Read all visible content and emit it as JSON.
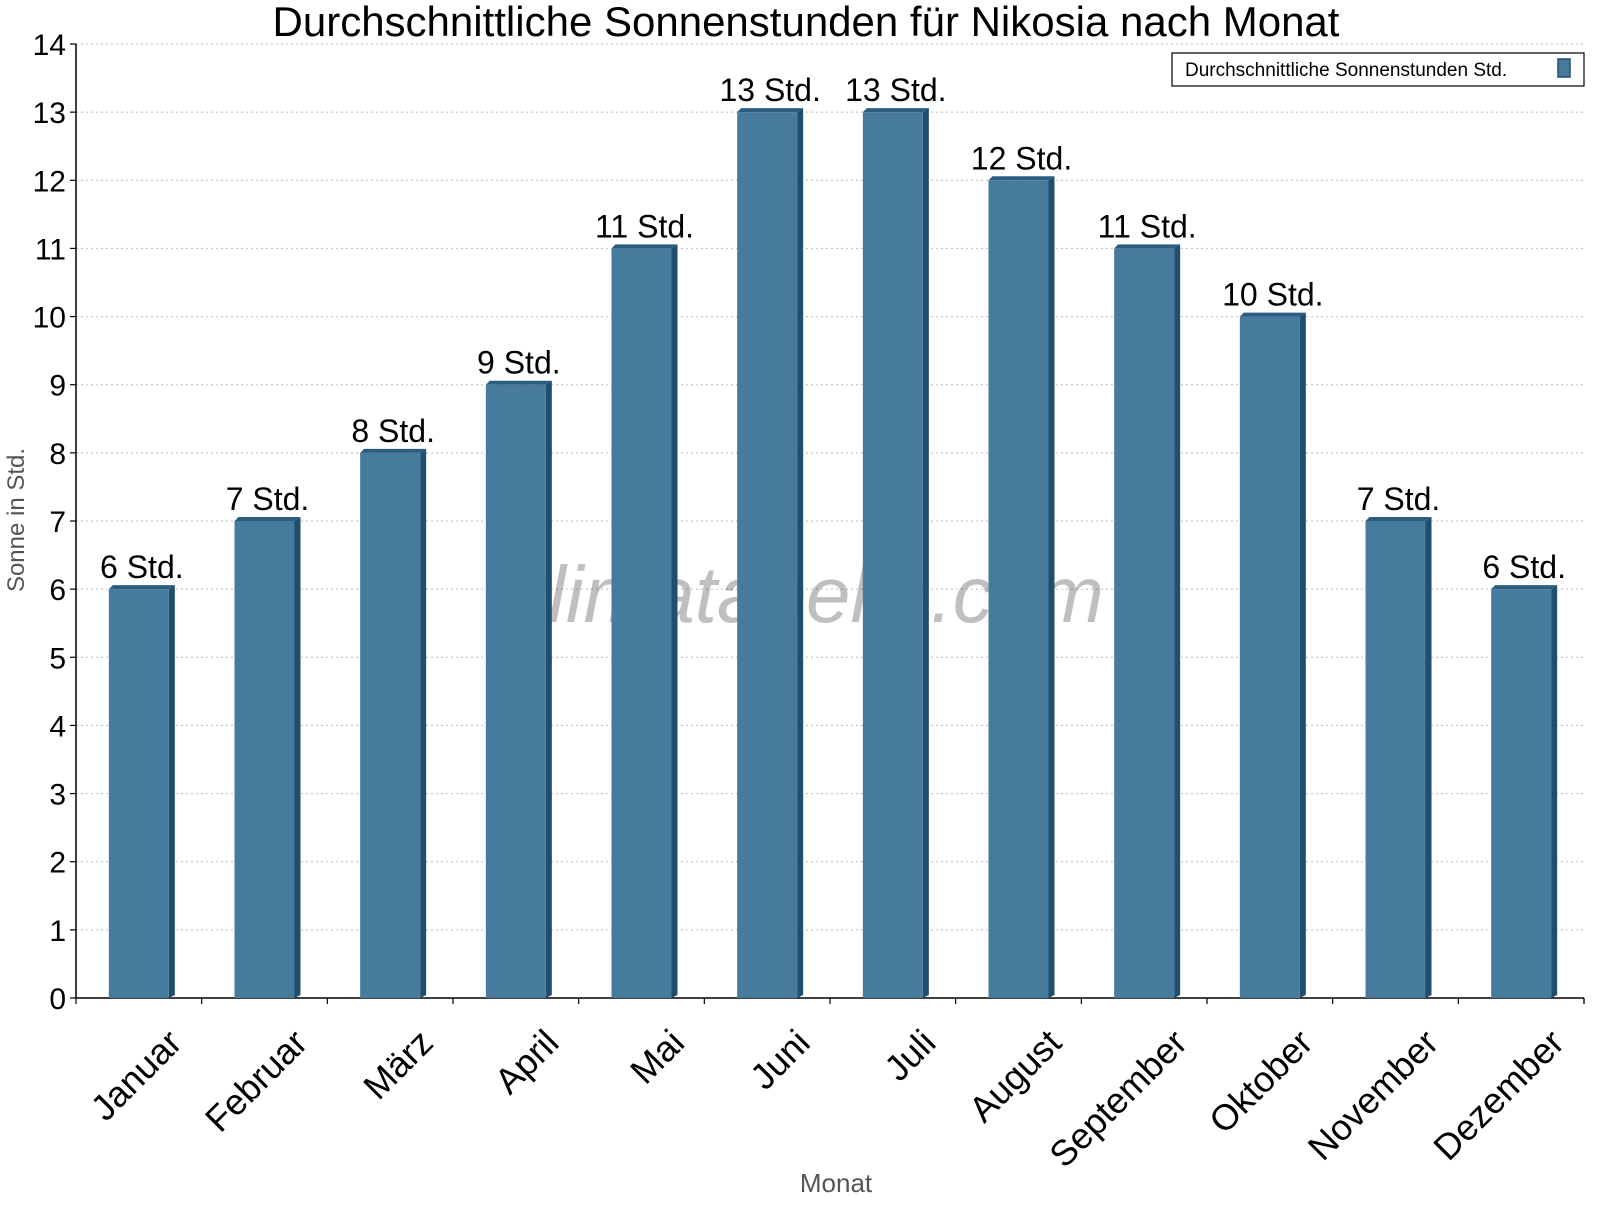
{
  "chart_data": {
    "type": "bar",
    "title": "Durchschnittliche Sonnenstunden für Nikosia nach Monat",
    "xlabel": "Monat",
    "ylabel": "Sonne in Std.",
    "ylim": [
      0,
      14
    ],
    "yticks": [
      "0",
      "1",
      "2",
      "3",
      "4",
      "5",
      "6",
      "7",
      "8",
      "9",
      "10",
      "11",
      "12",
      "13",
      "14"
    ],
    "grid": true,
    "legend_position": "top-right",
    "watermark": "klimatabelle.com",
    "categories": [
      "Januar",
      "Februar",
      "März",
      "April",
      "Mai",
      "Juni",
      "Juli",
      "August",
      "September",
      "Oktober",
      "November",
      "Dezember"
    ],
    "series": [
      {
        "name": "Durchschnittliche Sonnenstunden Std.",
        "values": [
          6,
          7,
          8,
          9,
          11,
          13,
          13,
          12,
          11,
          10,
          7,
          6
        ],
        "labels": [
          "6 Std.",
          "7 Std.",
          "8 Std.",
          "9 Std.",
          "11 Std.",
          "13 Std.",
          "13 Std.",
          "12 Std.",
          "11 Std.",
          "10 Std.",
          "7 Std.",
          "6 Std."
        ]
      }
    ],
    "colors": {
      "bar_front": "#467b9e",
      "bar_side": "#1f4e6e",
      "bar_top": "#2b5d80",
      "grid": "#bbbbbb",
      "axis": "#000000",
      "label_muted": "#555555"
    }
  }
}
